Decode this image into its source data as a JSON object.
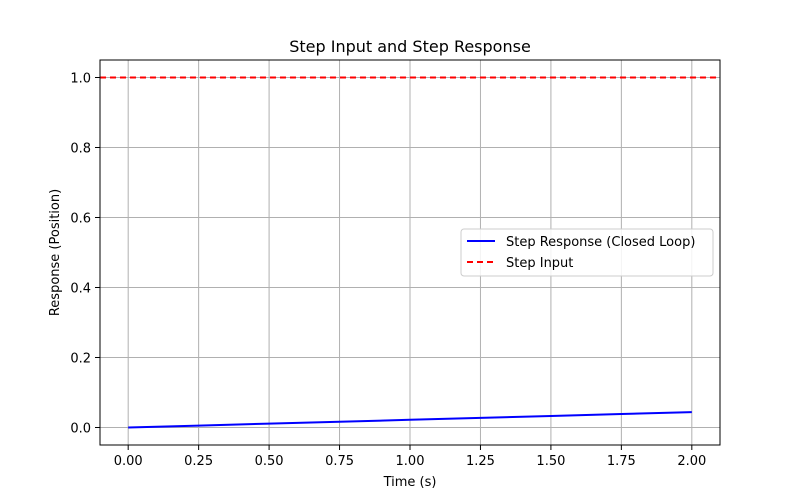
{
  "chart_data": {
    "type": "line",
    "title": "Step Input and Step Response",
    "xlabel": "Time (s)",
    "ylabel": "Response (Position)",
    "xlim": [
      -0.1,
      2.1
    ],
    "ylim": [
      -0.05,
      1.05
    ],
    "x_ticks": [
      0.0,
      0.25,
      0.5,
      0.75,
      1.0,
      1.25,
      1.5,
      1.75,
      2.0
    ],
    "x_tick_labels": [
      "0.00",
      "0.25",
      "0.50",
      "0.75",
      "1.00",
      "1.25",
      "1.50",
      "1.75",
      "2.00"
    ],
    "y_ticks": [
      0.0,
      0.2,
      0.4,
      0.6,
      0.8,
      1.0
    ],
    "y_tick_labels": [
      "0.0",
      "0.2",
      "0.4",
      "0.6",
      "0.8",
      "1.0"
    ],
    "grid": true,
    "legend_position": "center-right",
    "series": [
      {
        "name": "Step Response (Closed Loop)",
        "color": "#0000ff",
        "style": "solid",
        "x": [
          0.0,
          0.25,
          0.5,
          0.75,
          1.0,
          1.25,
          1.5,
          1.75,
          2.0
        ],
        "values": [
          0.0,
          0.0055,
          0.011,
          0.0165,
          0.022,
          0.0275,
          0.033,
          0.0385,
          0.044
        ]
      },
      {
        "name": "Step Input",
        "color": "#ff0000",
        "style": "dashed",
        "x": [
          -0.1,
          2.1
        ],
        "values": [
          1.0,
          1.0
        ]
      }
    ]
  }
}
